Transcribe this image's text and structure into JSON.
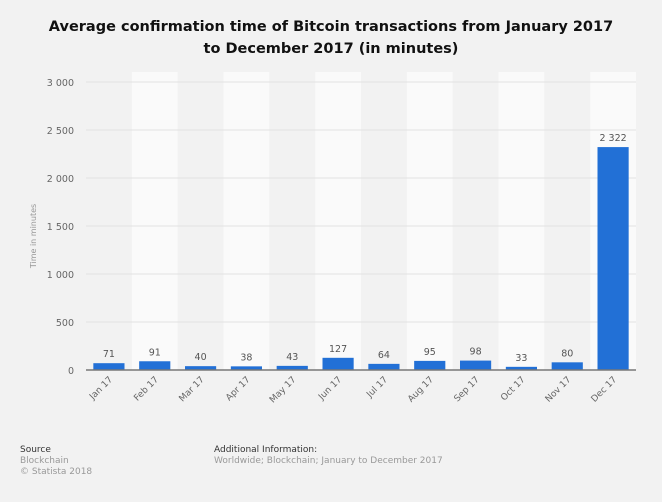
{
  "chart_data": {
    "type": "bar",
    "title_line1": "Average confirmation time of Bitcoin transactions from January 2017",
    "title_line2": "to December 2017 (in minutes)",
    "categories": [
      "Jan 17",
      "Feb 17",
      "Mar 17",
      "Apr 17",
      "May 17",
      "Jun 17",
      "Jul 17",
      "Aug 17",
      "Sep 17",
      "Oct 17",
      "Nov 17",
      "Dec 17"
    ],
    "values": [
      71,
      91,
      40,
      38,
      43,
      127,
      64,
      95,
      98,
      33,
      80,
      2322
    ],
    "value_labels": [
      "71",
      "91",
      "40",
      "38",
      "43",
      "127",
      "64",
      "95",
      "98",
      "33",
      "80",
      "2 322"
    ],
    "xlabel": "",
    "ylabel": "Time in minutes",
    "ylim": [
      0,
      3000
    ],
    "yticks": [
      0,
      500,
      1000,
      1500,
      2000,
      2500,
      3000
    ],
    "ytick_labels": [
      "0",
      "500",
      "1 000",
      "1 500",
      "2 000",
      "2 500",
      "3 000"
    ],
    "grid": true,
    "bar_color": "#2270d6"
  },
  "footer": {
    "source_heading": "Source",
    "source_lines": [
      "Blockchain",
      "© Statista 2018"
    ],
    "info_heading": "Additional Information:",
    "info_text": "Worldwide; Blockchain; January to December 2017"
  }
}
